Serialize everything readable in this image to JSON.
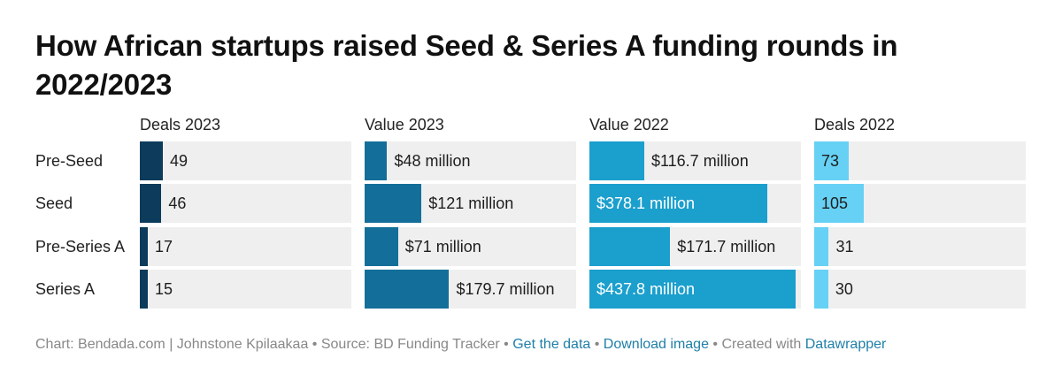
{
  "title": "How African startups raised Seed & Series A funding rounds in 2022/2023",
  "chart_data": {
    "type": "bar",
    "categories": [
      "Pre-Seed",
      "Seed",
      "Pre-Series A",
      "Series A"
    ],
    "series": [
      {
        "name": "Deals 2023",
        "values": [
          49,
          46,
          17,
          15
        ],
        "labels": [
          "49",
          "46",
          "17",
          "15"
        ],
        "max": 450,
        "color": "#0d3b5c"
      },
      {
        "name": "Value 2023",
        "values": [
          48,
          121,
          71,
          179.7
        ],
        "labels": [
          "$48 million",
          "$121 million",
          "$71 million",
          "$179.7 million"
        ],
        "max": 450,
        "color": "#136f99"
      },
      {
        "name": "Value 2022",
        "values": [
          116.7,
          378.1,
          171.7,
          437.8
        ],
        "labels": [
          "$116.7 million",
          "$378.1 million",
          "$171.7 million",
          "$437.8 million"
        ],
        "max": 450,
        "color": "#1b9fcd"
      },
      {
        "name": "Deals 2022",
        "values": [
          73,
          105,
          31,
          30
        ],
        "labels": [
          "73",
          "105",
          "31",
          "30"
        ],
        "max": 450,
        "color": "#66d1f4"
      }
    ]
  },
  "footer": {
    "credit": "Chart: Bendada.com | Johnstone Kpilaakaa",
    "separator": " • ",
    "source": "Source: BD Funding Tracker",
    "get_data": "Get the data",
    "download": "Download image",
    "created_with": "Created with ",
    "datawrapper": "Datawrapper"
  }
}
